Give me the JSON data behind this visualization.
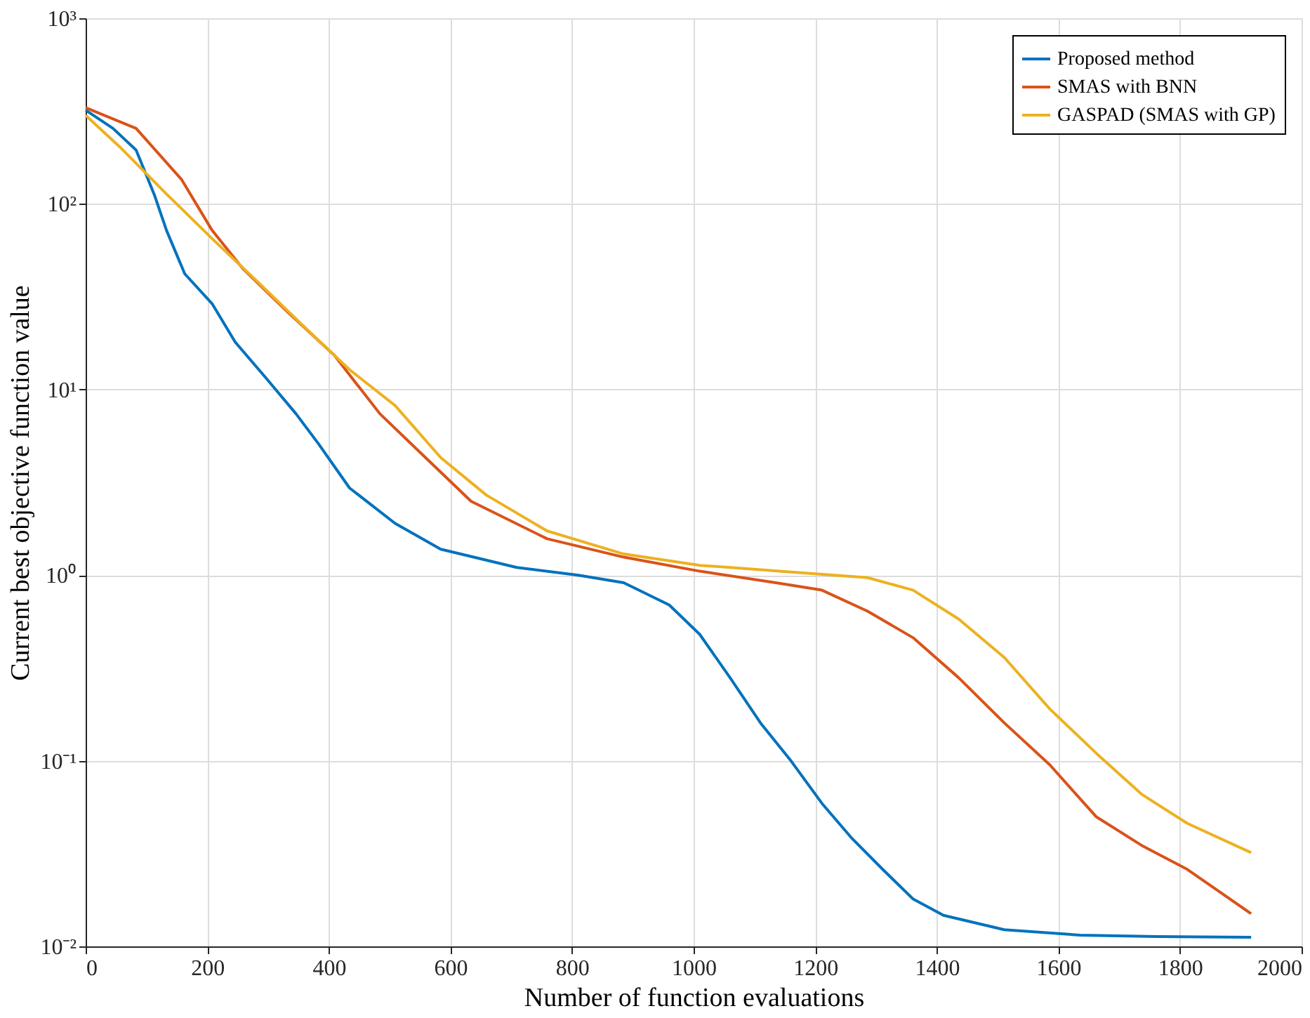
{
  "chart_data": {
    "type": "line",
    "xlabel": "Number of function evaluations",
    "ylabel": "Current best objective function value",
    "xlim": [
      0,
      2000
    ],
    "xticks": [
      0,
      200,
      400,
      600,
      800,
      1000,
      1200,
      1400,
      1600,
      1800,
      2000
    ],
    "ylim": [
      0.01,
      1000
    ],
    "yticks": [
      {
        "value": 0.01,
        "label": "10⁻²"
      },
      {
        "value": 0.1,
        "label": "10⁻¹"
      },
      {
        "value": 1,
        "label": "10⁰"
      },
      {
        "value": 10,
        "label": "10¹"
      },
      {
        "value": 100,
        "label": "10²"
      },
      {
        "value": 1000,
        "label": "10³"
      }
    ],
    "log": "y",
    "grid": true,
    "legend": "top right",
    "line_style": "solid",
    "marker": "none",
    "series": [
      {
        "name": "Proposed method",
        "color": "#0072bd",
        "x": [
          0,
          45,
          83,
          113,
          133,
          163,
          208,
          246,
          296,
          346,
          383,
          434,
          509,
          584,
          709,
          810,
          885,
          960,
          1010,
          1060,
          1110,
          1160,
          1211,
          1261,
          1311,
          1361,
          1411,
          1511,
          1636,
          1762,
          1917
        ],
        "values": [
          320,
          255,
          195,
          112,
          72,
          42,
          29,
          18,
          11.6,
          7.4,
          5.1,
          2.95,
          1.9,
          1.38,
          1.1,
          1.0,
          0.91,
          0.69,
          0.48,
          0.28,
          0.16,
          0.1,
          0.059,
          0.038,
          0.026,
          0.018,
          0.0147,
          0.0123,
          0.0115,
          0.0113,
          0.0112
        ]
      },
      {
        "name": "SMAS with BNN",
        "color": "#d95319",
        "x": [
          0,
          83,
          158,
          208,
          258,
          333,
          409,
          484,
          559,
          634,
          759,
          885,
          1010,
          1135,
          1211,
          1286,
          1361,
          1436,
          1511,
          1586,
          1662,
          1737,
          1812,
          1917
        ],
        "values": [
          330,
          255,
          135,
          72,
          45,
          26,
          15.3,
          7.4,
          4.3,
          2.5,
          1.57,
          1.25,
          1.05,
          0.91,
          0.83,
          0.64,
          0.46,
          0.28,
          0.16,
          0.095,
          0.05,
          0.035,
          0.026,
          0.015
        ]
      },
      {
        "name": "GASPAD (SMAS with GP)",
        "color": "#edb120",
        "x": [
          0,
          58,
          133,
          208,
          283,
          358,
          434,
          509,
          584,
          659,
          759,
          885,
          1010,
          1160,
          1286,
          1361,
          1436,
          1511,
          1586,
          1662,
          1737,
          1812,
          1917
        ],
        "values": [
          300,
          200,
          113,
          65,
          38,
          22,
          12.8,
          8.2,
          4.3,
          2.7,
          1.73,
          1.3,
          1.13,
          1.04,
          0.97,
          0.83,
          0.58,
          0.36,
          0.19,
          0.11,
          0.066,
          0.046,
          0.032
        ]
      }
    ]
  }
}
